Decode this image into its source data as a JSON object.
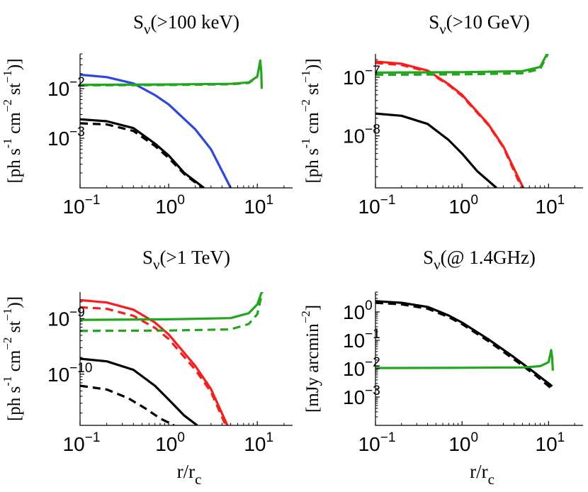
{
  "chart_data": [
    {
      "type": "line",
      "title": {
        "base": "S",
        "sub": "ν",
        "rest": "(>100 keV)"
      },
      "ylabel": {
        "text": "[ph s",
        "units": [
          [
            "-1",
            " cm"
          ],
          [
            "−2",
            " st"
          ],
          [
            "−1",
            ")]"
          ]
        ]
      },
      "xlabel": "",
      "x_scale": "log",
      "y_scale": "log",
      "xlim": [
        0.1,
        25
      ],
      "ylim": [
        0.0001,
        0.05
      ],
      "x_ticks": [
        {
          "value": 0.1,
          "label": "10",
          "exp": "−1"
        },
        {
          "value": 1,
          "label": "10",
          "exp": "0"
        },
        {
          "value": 10,
          "label": "10",
          "exp": "1"
        }
      ],
      "y_ticks": [
        {
          "value": 0.001,
          "label": "10",
          "exp": "−3"
        },
        {
          "value": 0.01,
          "label": "10",
          "exp": "−2"
        }
      ],
      "series": [
        {
          "color": "#2c46e6",
          "dash": "solid",
          "x": [
            0.1,
            0.2,
            0.4,
            0.7,
            1,
            2,
            3,
            5
          ],
          "y": [
            0.019,
            0.017,
            0.0127,
            0.0074,
            0.0048,
            0.0015,
            0.0006,
            0.0001
          ]
        },
        {
          "color": "#000000",
          "dash": "solid",
          "x": [
            0.1,
            0.2,
            0.4,
            0.7,
            1,
            1.5,
            2.5
          ],
          "y": [
            0.0024,
            0.0022,
            0.0016,
            0.00078,
            0.00045,
            0.0002,
            0.0001
          ]
        },
        {
          "color": "#000000",
          "dash": "dashed",
          "x": [
            0.1,
            0.2,
            0.4,
            0.7,
            1,
            1.5,
            2.4
          ],
          "y": [
            0.002,
            0.0019,
            0.0014,
            0.0007,
            0.0004,
            0.00019,
            0.0001
          ]
        },
        {
          "color": "#22a61c",
          "dash": "solid",
          "x": [
            0.1,
            1,
            5,
            8,
            10,
            10.8,
            11.1,
            11.2
          ],
          "y": [
            0.0119,
            0.0121,
            0.0125,
            0.0133,
            0.0175,
            0.037,
            0.02,
            0.0099
          ]
        },
        {
          "color": "#22a61c",
          "dash": "dashed",
          "x": [
            0.1,
            1,
            5,
            8,
            10
          ],
          "y": [
            0.0116,
            0.0118,
            0.0122,
            0.013,
            0.017
          ]
        }
      ]
    },
    {
      "type": "line",
      "title": {
        "base": "S",
        "sub": "ν",
        "rest": "(>10 GeV)"
      },
      "ylabel": {
        "text": "[ph s",
        "units": [
          [
            "-1",
            " cm"
          ],
          [
            "−2",
            " st"
          ],
          [
            "−1",
            ")]"
          ]
        ]
      },
      "xlabel": "",
      "x_scale": "log",
      "y_scale": "log",
      "xlim": [
        0.1,
        25
      ],
      "ylim": [
        1.3e-09,
        2.5e-07
      ],
      "x_ticks": [
        {
          "value": 0.1,
          "label": "10",
          "exp": "−1"
        },
        {
          "value": 1,
          "label": "10",
          "exp": "0"
        },
        {
          "value": 10,
          "label": "10",
          "exp": "1"
        }
      ],
      "y_ticks": [
        {
          "value": 1e-08,
          "label": "10",
          "exp": "−8"
        },
        {
          "value": 1e-07,
          "label": "10",
          "exp": "−7"
        }
      ],
      "series": [
        {
          "color": "#ff1a1a",
          "dash": "solid",
          "x": [
            0.1,
            0.2,
            0.4,
            0.7,
            1,
            2,
            3,
            5.1
          ],
          "y": [
            1.85e-07,
            1.7e-07,
            1.3e-07,
            7.6e-08,
            5e-08,
            1.6e-08,
            6.6e-09,
            1.3e-09
          ]
        },
        {
          "color": "#ff1a1a",
          "dash": "dashed",
          "x": [
            0.1,
            0.2,
            0.4,
            0.7,
            1,
            2,
            3,
            4.9
          ],
          "y": [
            1.75e-07,
            1.62e-07,
            1.25e-07,
            7.4e-08,
            4.8e-08,
            1.55e-08,
            6.4e-09,
            1.3e-09
          ]
        },
        {
          "color": "#000000",
          "dash": "solid",
          "x": [
            0.1,
            0.2,
            0.4,
            0.7,
            1,
            1.5,
            2.5
          ],
          "y": [
            2.4e-08,
            2.2e-08,
            1.6e-08,
            8.5e-09,
            5e-09,
            2.5e-09,
            1.3e-09
          ]
        },
        {
          "color": "#22a61c",
          "dash": "solid",
          "x": [
            0.1,
            1,
            5,
            8,
            9.6
          ],
          "y": [
            1.2e-07,
            1.22e-07,
            1.27e-07,
            1.5e-07,
            2.5e-07
          ]
        },
        {
          "color": "#22a61c",
          "dash": "dashed",
          "x": [
            0.1,
            1,
            5,
            8,
            9.8
          ],
          "y": [
            1.1e-07,
            1.12e-07,
            1.17e-07,
            1.38e-07,
            2.5e-07
          ]
        }
      ]
    },
    {
      "type": "line",
      "title": {
        "base": "S",
        "sub": "ν",
        "rest": "(>1 TeV)"
      },
      "ylabel": {
        "text": "[ph s",
        "units": [
          [
            "-1",
            " cm"
          ],
          [
            "−2",
            " st"
          ],
          [
            "−1",
            ")]"
          ]
        ]
      },
      "xlabel": "r/r",
      "xlabel_sub": "c",
      "x_scale": "log",
      "y_scale": "log",
      "xlim": [
        0.1,
        25
      ],
      "ylim": [
        1.2e-11,
        3e-09
      ],
      "x_ticks": [
        {
          "value": 0.1,
          "label": "10",
          "exp": "−1"
        },
        {
          "value": 1,
          "label": "10",
          "exp": "0"
        },
        {
          "value": 10,
          "label": "10",
          "exp": "1"
        }
      ],
      "y_ticks": [
        {
          "value": 1e-10,
          "label": "10",
          "exp": "−10"
        },
        {
          "value": 1e-09,
          "label": "10",
          "exp": "−9"
        }
      ],
      "series": [
        {
          "color": "#ff1a1a",
          "dash": "solid",
          "x": [
            0.1,
            0.2,
            0.4,
            0.7,
            1,
            2,
            3,
            4.6
          ],
          "y": [
            2.15e-09,
            1.95e-09,
            1.45e-09,
            8.5e-10,
            5.2e-10,
            1.4e-10,
            5.4e-11,
            1.2e-11
          ]
        },
        {
          "color": "#ff1a1a",
          "dash": "dashed",
          "x": [
            0.1,
            0.2,
            0.4,
            0.7,
            1,
            2,
            3,
            4.4
          ],
          "y": [
            1.6e-09,
            1.5e-09,
            1.12e-09,
            6.8e-10,
            4.3e-10,
            1.2e-10,
            4.8e-11,
            1.2e-11
          ]
        },
        {
          "color": "#000000",
          "dash": "solid",
          "x": [
            0.1,
            0.2,
            0.4,
            0.7,
            1,
            1.5,
            2.1
          ],
          "y": [
            1.9e-10,
            1.7e-10,
            1.2e-10,
            6.2e-11,
            3.5e-11,
            1.8e-11,
            1.2e-11
          ]
        },
        {
          "color": "#000000",
          "dash": "dashed",
          "x": [
            0.1,
            0.2,
            0.35,
            0.55,
            0.8,
            1.15
          ],
          "y": [
            6.2e-11,
            5.3e-11,
            3.7e-11,
            2.4e-11,
            1.6e-11,
            1.2e-11
          ]
        },
        {
          "color": "#22a61c",
          "dash": "solid",
          "x": [
            0.1,
            1,
            5,
            8,
            10,
            11.2
          ],
          "y": [
            9.5e-10,
            9.7e-10,
            1.02e-09,
            1.25e-09,
            1.8e-09,
            3e-09
          ]
        },
        {
          "color": "#22a61c",
          "dash": "dashed",
          "x": [
            0.1,
            1,
            5,
            8,
            10,
            11.4
          ],
          "y": [
            6e-10,
            6.1e-10,
            6.4e-10,
            8e-10,
            1.2e-09,
            3e-09
          ]
        }
      ]
    },
    {
      "type": "line",
      "title": {
        "base": "S",
        "sub": "ν",
        "rest": "(@ 1.4GHz)"
      },
      "ylabel": {
        "text": "[mJy arcmin",
        "units": [
          [
            "−2",
            "]"
          ]
        ]
      },
      "xlabel": "r/r",
      "xlabel_sub": "c",
      "x_scale": "log",
      "y_scale": "log",
      "xlim": [
        0.1,
        25
      ],
      "ylim": [
        0.0001,
        5
      ],
      "x_ticks": [
        {
          "value": 0.1,
          "label": "10",
          "exp": "−1"
        },
        {
          "value": 1,
          "label": "10",
          "exp": "0"
        },
        {
          "value": 10,
          "label": "10",
          "exp": "1"
        }
      ],
      "y_ticks": [
        {
          "value": 0.001,
          "label": "10",
          "exp": "−3"
        },
        {
          "value": 0.01,
          "label": "10",
          "exp": "−2"
        },
        {
          "value": 0.1,
          "label": "10",
          "exp": "−1"
        },
        {
          "value": 1,
          "label": "10",
          "exp": "0"
        }
      ],
      "series": [
        {
          "color": "#000000",
          "dash": "solid",
          "x": [
            0.1,
            0.2,
            0.4,
            0.7,
            1,
            2,
            4,
            7,
            11
          ],
          "y": [
            2.4,
            2.1,
            1.5,
            0.75,
            0.42,
            0.11,
            0.025,
            0.007,
            0.0024
          ]
        },
        {
          "color": "#000000",
          "dash": "dashed",
          "x": [
            0.1,
            0.2,
            0.4,
            0.7,
            1,
            2,
            4,
            7,
            11
          ],
          "y": [
            2.1,
            1.85,
            1.3,
            0.66,
            0.37,
            0.095,
            0.021,
            0.006,
            0.0019
          ]
        },
        {
          "color": "#22a61c",
          "dash": "solid",
          "x": [
            0.1,
            1,
            5,
            8,
            10,
            10.7,
            11,
            11.2
          ],
          "y": [
            0.0105,
            0.0107,
            0.011,
            0.0122,
            0.017,
            0.045,
            0.025,
            0.0085
          ]
        }
      ]
    }
  ]
}
